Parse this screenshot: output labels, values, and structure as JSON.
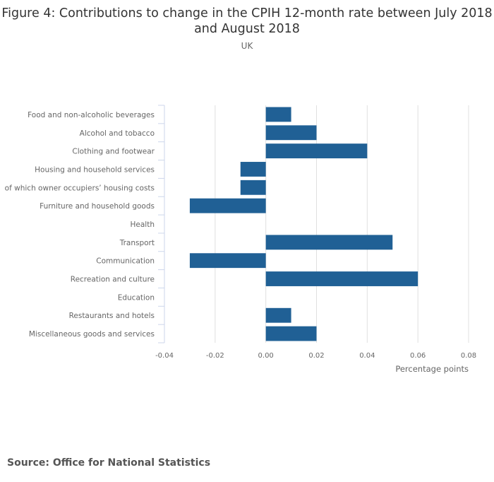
{
  "chart_data": {
    "type": "bar",
    "orientation": "horizontal",
    "title": "Figure 4: Contributions to change in the CPIH 12-month rate between July 2018 and August 2018",
    "subtitle": "UK",
    "categories": [
      "Food and non-alcoholic beverages",
      "Alcohol and tobacco",
      "Clothing and footwear",
      "Housing and household services",
      "of which owner occupiers’ housing costs",
      "Furniture and household goods",
      "Health",
      "Transport",
      "Communication",
      "Recreation and culture",
      "Education",
      "Restaurants and hotels",
      "Miscellaneous goods and services"
    ],
    "values": [
      0.01,
      0.02,
      0.04,
      -0.01,
      -0.01,
      -0.03,
      0,
      0.05,
      -0.03,
      0.06,
      0,
      0.01,
      0.02
    ],
    "xlabel": "Percentage points",
    "xlim": [
      -0.04,
      0.08
    ],
    "xticks": [
      "-0.04",
      "-0.02",
      "0.00",
      "0.02",
      "0.04",
      "0.06",
      "0.08"
    ],
    "grid": true,
    "bar_color": "#206095"
  },
  "source": "Source: Office for National Statistics"
}
